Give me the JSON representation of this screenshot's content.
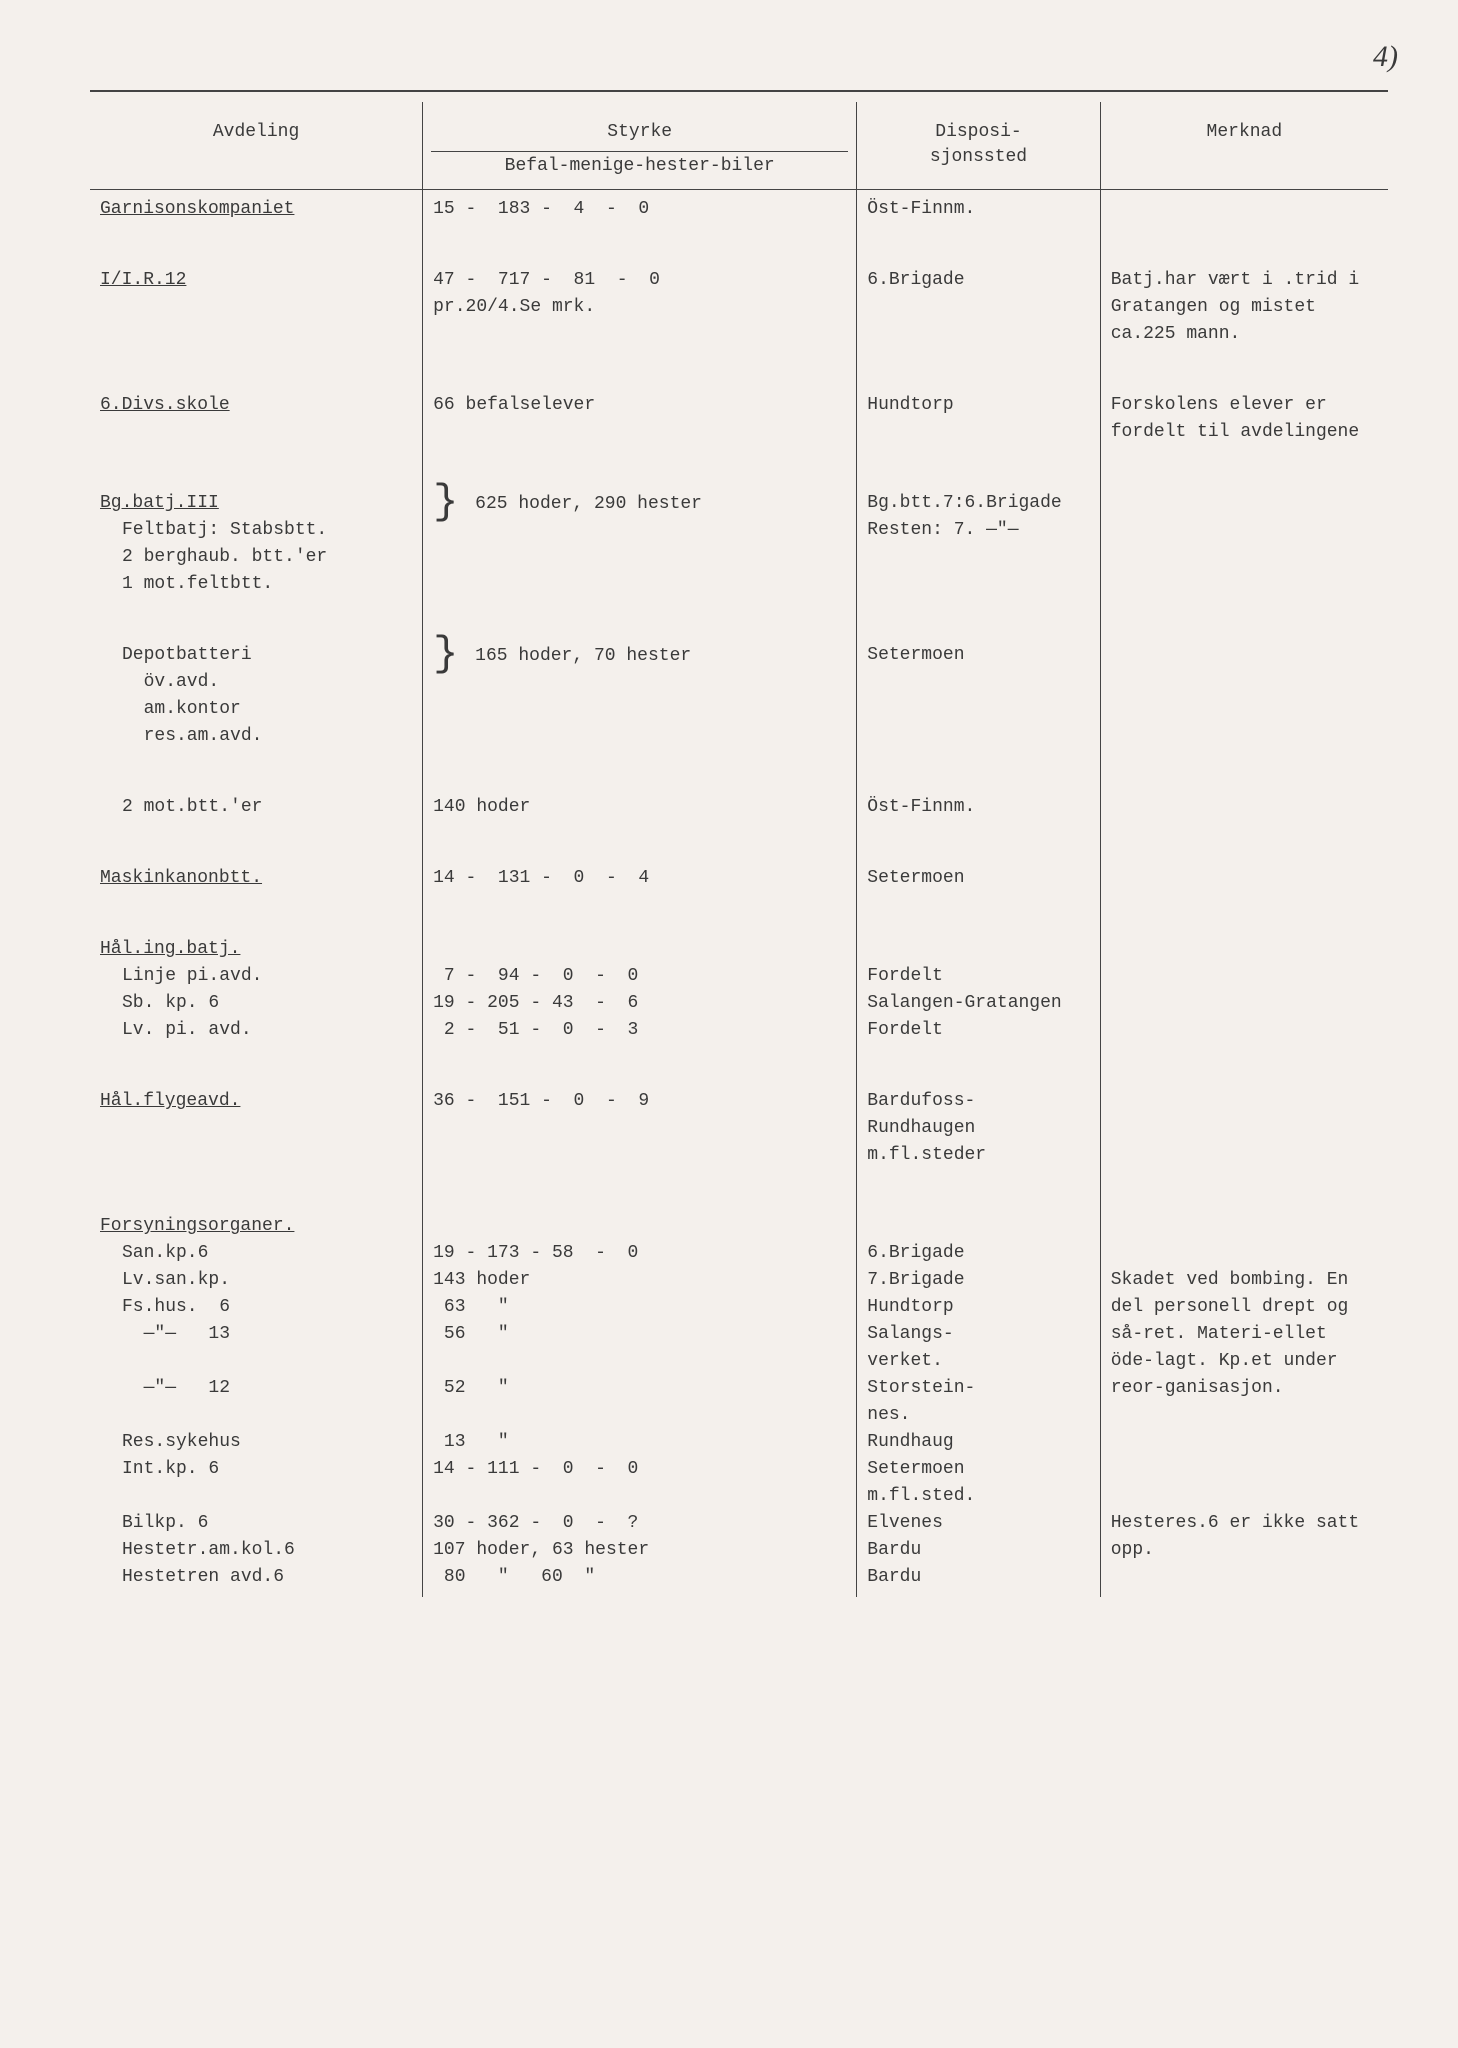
{
  "page_number": "4)",
  "headers": {
    "avdeling": "Avdeling",
    "styrke": "Styrke",
    "styrke_sub": "Befal-menige-hester-biler",
    "disposisjonssted": "Disposi-\nsjonssted",
    "merknad": "Merknad"
  },
  "rows": [
    {
      "avd": "Garnisonskompaniet",
      "avd_u": true,
      "sty": "15 -  183 -  4  -  0",
      "dis": "Öst-Finnm.",
      "mer": ""
    },
    {
      "avd": "I/I.R.12",
      "avd_u": true,
      "sty": "47 -  717 -  81  -  0\npr.20/4.Se mrk.",
      "dis": "6.Brigade",
      "mer": "Batj.har vært i .trid i Gratangen og mistet ca.225 mann."
    },
    {
      "avd": "6.Divs.skole",
      "avd_u": true,
      "sty": "66 befalselever",
      "dis": "Hundtorp",
      "mer": "Forskolens elever er fordelt til avdelingene"
    },
    {
      "avd_html": "<span class='underline'>Bg.batj.III</span><br><span class='ind'>Feltbatj: Stabsbtt.<br>2 berghaub. btt.'er<br>1 mot.feltbtt.</span>",
      "sty_html": "<span class='bracket'>}</span> 625 hoder, 290 hester",
      "dis_html": "Bg.btt.7:6.Brigade<br>Resten:  7.  —\"—",
      "mer": ""
    },
    {
      "avd_html": "<span class='ind'>Depotbatteri<br>&nbsp;&nbsp;öv.avd.<br>&nbsp;&nbsp;am.kontor<br>&nbsp;&nbsp;res.am.avd.</span>",
      "sty_html": "<span class='bracket'>}</span> 165 hoder, 70 hester",
      "dis": "Setermoen",
      "mer": ""
    },
    {
      "avd_html": "<span class='ind'>2 mot.btt.'er</span>",
      "sty": "140 hoder",
      "dis": "Öst-Finnm.",
      "mer": ""
    },
    {
      "avd": "Maskinkanonbtt.",
      "avd_u": true,
      "sty": "14 -  131 -  0  -  4",
      "dis": "Setermoen",
      "mer": ""
    },
    {
      "avd_html": "<span class='underline'>Hål.ing.batj.</span><br><span class='ind'>Linje pi.avd.<br>Sb. kp. 6<br>Lv. pi. avd.</span>",
      "sty_html": "<br>&nbsp;7 -&nbsp;&nbsp;94 -&nbsp;&nbsp;0 &nbsp;-&nbsp;&nbsp;0<br>19 -&nbsp;205 -&nbsp;43 &nbsp;-&nbsp;&nbsp;6<br>&nbsp;2 -&nbsp;&nbsp;51 -&nbsp;&nbsp;0 &nbsp;-&nbsp;&nbsp;3",
      "dis_html": "<br>Fordelt<br>Salangen-Gratangen<br>Fordelt",
      "mer": ""
    },
    {
      "avd": "Hål.flygeavd.",
      "avd_u": true,
      "sty": "36 -  151 -  0  -  9",
      "dis": "Bardufoss-\nRundhaugen\nm.fl.steder",
      "mer": ""
    },
    {
      "avd_html": "<span class='underline'>Forsyningsorganer.</span><br><span class='ind'>San.kp.6<br>Lv.san.kp.<br>Fs.hus.&nbsp;&nbsp;6<br>&nbsp;&nbsp;—\"—&nbsp;&nbsp;&nbsp;13<br><br>&nbsp;&nbsp;—\"—&nbsp;&nbsp;&nbsp;12<br><br>Res.sykehus<br>Int.kp.&nbsp;6<br><br>Bilkp.&nbsp;6<br>Hestetr.am.kol.6<br>Hestetren avd.6</span>",
      "sty_html": "<br>19 -&nbsp;173 -&nbsp;58 &nbsp;-&nbsp;&nbsp;0<br>143 hoder<br>&nbsp;63&nbsp;&nbsp;&nbsp;\"<br>&nbsp;56&nbsp;&nbsp;&nbsp;\"<br><br>&nbsp;52&nbsp;&nbsp;&nbsp;\"<br><br>&nbsp;13&nbsp;&nbsp;&nbsp;\"<br>14 -&nbsp;111 -&nbsp;&nbsp;0 &nbsp;-&nbsp;&nbsp;0<br><br>30 -&nbsp;362 -&nbsp;&nbsp;0 &nbsp;-&nbsp;&nbsp;?<br>107 hoder, 63 hester<br>&nbsp;80&nbsp;&nbsp;&nbsp;\"&nbsp;&nbsp;&nbsp;60&nbsp;&nbsp;\"",
      "dis_html": "<br>6.Brigade<br>7.Brigade<br>Hundtorp<br>Salangs-<br>verket.<br>Storstein-<br>nes.<br>Rundhaug<br>Setermoen<br>m.fl.sted.<br>Elvenes<br>Bardu<br>Bardu",
      "mer_html": "<br><br>Skadet ved bombing. En del personell drept og så-ret. Materi-ellet öde-lagt. Kp.et under reor-ganisasjon.<br><br><br><br><br>Hesteres.6 er ikke satt opp."
    }
  ]
}
